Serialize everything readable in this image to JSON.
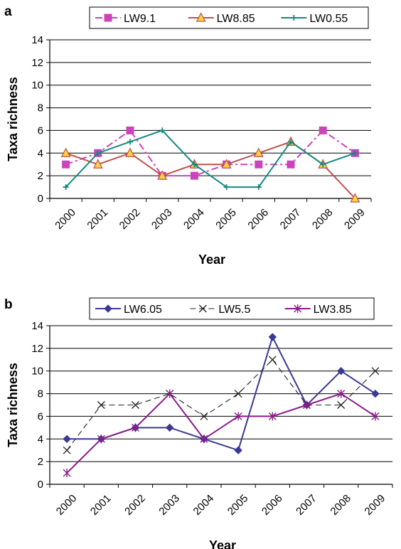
{
  "chart_data": [
    {
      "panel": "a",
      "type": "line",
      "xlabel": "Year",
      "ylabel": "Taxa richness",
      "ylim": [
        0,
        14
      ],
      "yticks": [
        0,
        2,
        4,
        6,
        8,
        10,
        12,
        14
      ],
      "categories": [
        "2000",
        "2001",
        "2002",
        "2003",
        "2004",
        "2005",
        "2006",
        "2007",
        "2008",
        "2009"
      ],
      "grid": "horizontal",
      "legend_position": "top",
      "series": [
        {
          "name": "LW9.1",
          "values": [
            3,
            4,
            6,
            2,
            2,
            3,
            3,
            3,
            6,
            4
          ],
          "color": "#cc44bb",
          "style": "dash-dot",
          "marker": "square"
        },
        {
          "name": "LW8.85",
          "values": [
            4,
            3,
            4,
            2,
            3,
            3,
            4,
            5,
            3,
            0
          ],
          "color": "#c0504d",
          "style": "solid",
          "marker": "triangle"
        },
        {
          "name": "LW0.55",
          "values": [
            1,
            4,
            5,
            6,
            3,
            1,
            1,
            5,
            3,
            4
          ],
          "color": "#148a80",
          "style": "solid",
          "marker": "plus"
        }
      ]
    },
    {
      "panel": "b",
      "type": "line",
      "xlabel": "Year",
      "ylabel": "Taxa richness",
      "ylim": [
        0,
        14
      ],
      "yticks": [
        0,
        2,
        4,
        6,
        8,
        10,
        12,
        14
      ],
      "categories": [
        "2000",
        "2001",
        "2002",
        "2003",
        "2004",
        "2005",
        "2006",
        "2007",
        "2008",
        "2009"
      ],
      "grid": "horizontal",
      "legend_position": "top",
      "series": [
        {
          "name": "LW6.05",
          "values": [
            4,
            4,
            5,
            5,
            4,
            3,
            13,
            7,
            10,
            8
          ],
          "color": "#3a3a95",
          "style": "solid",
          "marker": "diamond"
        },
        {
          "name": "LW5.5",
          "values": [
            3,
            7,
            7,
            8,
            6,
            8,
            11,
            7,
            7,
            10
          ],
          "color": "#222222",
          "style": "dash",
          "marker": "x"
        },
        {
          "name": "LW3.85",
          "values": [
            1,
            4,
            5,
            8,
            4,
            6,
            6,
            7,
            8,
            6
          ],
          "color": "#8e1a8a",
          "style": "solid",
          "marker": "asterisk"
        }
      ]
    }
  ]
}
